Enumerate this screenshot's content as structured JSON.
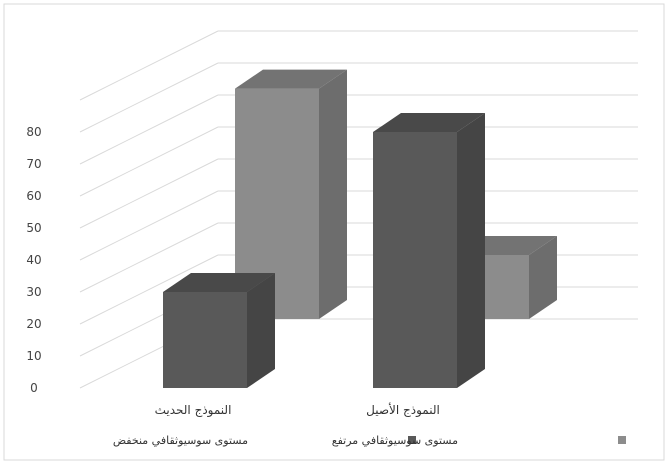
{
  "chart_data": {
    "type": "bar",
    "categories": [
      "النموذج الحديث",
      "النموذج الأصيل"
    ],
    "series": [
      {
        "name": "مستوى سوسيوثقافي منخفض",
        "values": [
          30,
          80
        ],
        "color": "#595959",
        "row": "front"
      },
      {
        "name": "مستوى سوسيوثقافي مرتفع",
        "values": [
          72,
          20
        ],
        "color": "#8c8c8c",
        "row": "back"
      }
    ],
    "yticks": [
      0,
      10,
      20,
      30,
      40,
      50,
      60,
      70,
      80
    ],
    "ylim": [
      0,
      90
    ],
    "gridlines": true,
    "legend": "bottom",
    "three_d": true,
    "title": "",
    "xlabel": "",
    "ylabel": ""
  }
}
